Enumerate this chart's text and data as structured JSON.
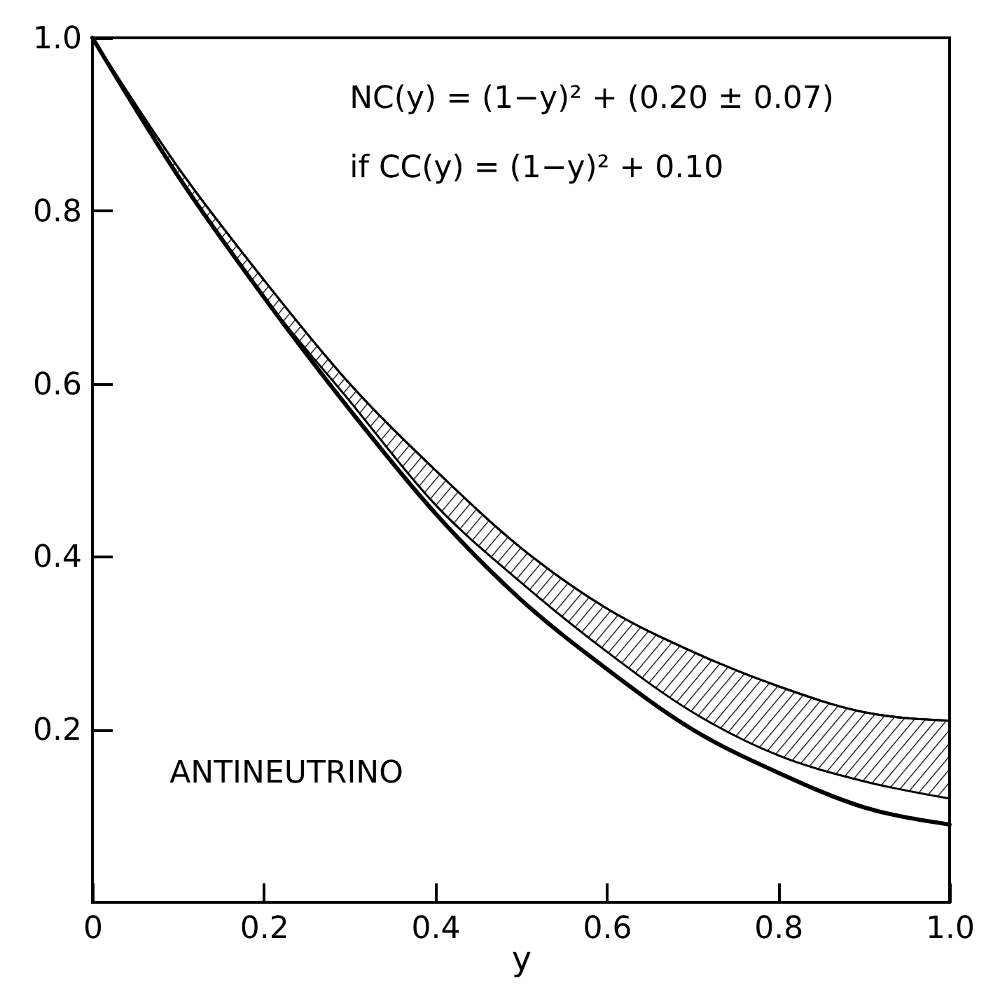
{
  "chart_data": {
    "type": "line",
    "xlabel": "y",
    "annotations": [
      "NC(y) = (1−y)² + (0.20 ± 0.07)",
      "if  CC(y) = (1−y)² + 0.10",
      "ANTINEUTRINO"
    ],
    "x": [
      0,
      0.1,
      0.2,
      0.3,
      0.4,
      0.5,
      0.6,
      0.7,
      0.8,
      0.9,
      1.0
    ],
    "series": [
      {
        "color": "#000000",
        "values": [
          1,
          0.85,
          0.72,
          0.6,
          0.5,
          0.41,
          0.34,
          0.29,
          0.25,
          0.22,
          0.21
        ],
        "lower": [
          1,
          0.84,
          0.7,
          0.58,
          0.46,
          0.37,
          0.29,
          0.22,
          0.17,
          0.14,
          0.12
        ],
        "upper": [
          1,
          0.85,
          0.72,
          0.6,
          0.5,
          0.41,
          0.34,
          0.29,
          0.25,
          0.22,
          0.21
        ]
      },
      {
        "type": "line",
        "color": "#000000",
        "values": [
          1,
          0.84,
          0.7,
          0.57,
          0.45,
          0.35,
          0.27,
          0.2,
          0.15,
          0.11,
          0.09
        ]
      }
    ],
    "xlim": [
      0,
      1
    ],
    "ylim": [
      0,
      1
    ],
    "xticks": [
      0,
      0.2,
      0.4,
      0.6,
      0.8,
      {
        "value": 1,
        "label": "1.0"
      }
    ],
    "yticks": [
      0.2,
      0.4,
      0.6,
      0.8,
      {
        "value": 1,
        "label": "1.0"
      }
    ]
  }
}
